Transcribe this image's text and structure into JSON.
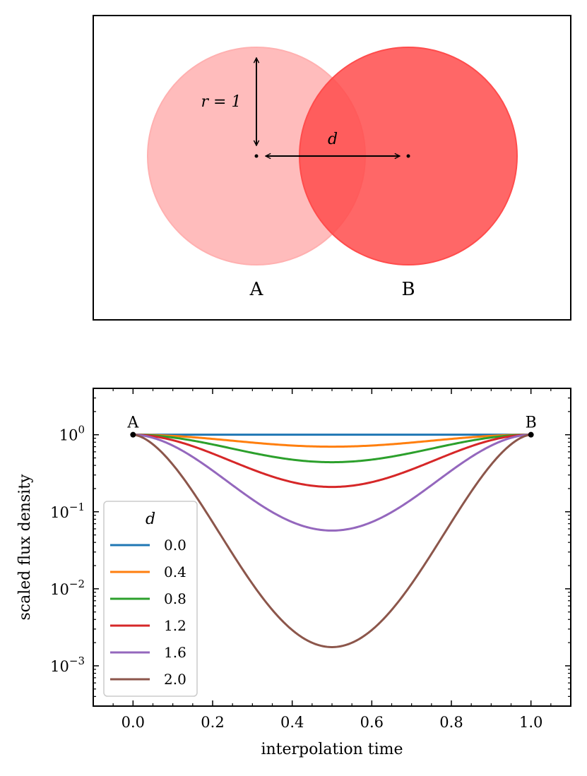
{
  "diagram": {
    "label_a": "A",
    "label_b": "B",
    "radius_label": "r = 1",
    "distance_label": "d",
    "color_a": "#ffb0b0",
    "color_b": "#ff4c4c"
  },
  "chart_data": {
    "type": "line",
    "xlabel": "interpolation time",
    "ylabel": "scaled flux density",
    "xscale": "linear",
    "yscale": "log",
    "xlim": [
      -0.1,
      1.1
    ],
    "ylim": [
      0.0003,
      4.0
    ],
    "x_ticks": [
      0.0,
      0.2,
      0.4,
      0.6,
      0.8,
      1.0
    ],
    "x_tick_labels": [
      "0.0",
      "0.2",
      "0.4",
      "0.6",
      "0.8",
      "1.0"
    ],
    "y_ticks": [
      1,
      0.1,
      0.01,
      0.001
    ],
    "y_tick_labels": [
      {
        "base": "10",
        "exp": "0"
      },
      {
        "base": "10",
        "exp": "−1"
      },
      {
        "base": "10",
        "exp": "−2"
      },
      {
        "base": "10",
        "exp": "−3"
      }
    ],
    "endpoint_labels": {
      "start": "A",
      "end": "B"
    },
    "legend": {
      "title": "d",
      "location": "lower left"
    },
    "series": [
      {
        "name": "0.0",
        "color": "#1f77b4",
        "min_value": 1.0
      },
      {
        "name": "0.4",
        "color": "#ff7f0e",
        "min_value": 0.7
      },
      {
        "name": "0.8",
        "color": "#2ca02c",
        "min_value": 0.44
      },
      {
        "name": "1.2",
        "color": "#d62728",
        "min_value": 0.21
      },
      {
        "name": "1.6",
        "color": "#9467bd",
        "min_value": 0.057
      },
      {
        "name": "2.0",
        "color": "#8c564b",
        "min_value": 0.00175
      }
    ]
  }
}
